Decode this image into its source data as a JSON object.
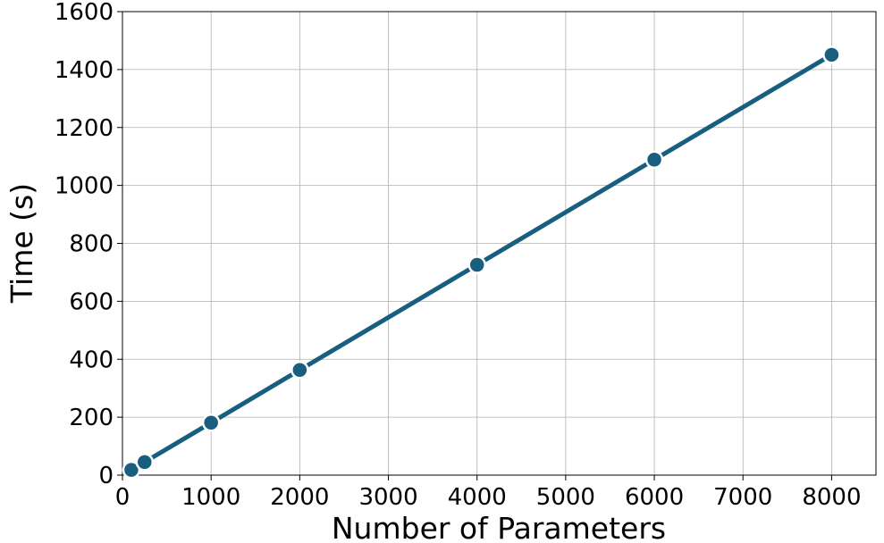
{
  "chart_data": {
    "type": "line",
    "x_label": "Number of Parameters",
    "y_label": "Time (s)",
    "x": [
      100,
      250,
      1000,
      2000,
      4000,
      6000,
      8000
    ],
    "series": [
      {
        "color": "#175e7f",
        "values": [
          18,
          45,
          181,
          363,
          726,
          1089,
          1451
        ]
      }
    ],
    "xlim": [
      0,
      8500
    ],
    "xticks": [
      0,
      1000,
      2000,
      3000,
      4000,
      5000,
      6000,
      7000,
      8000
    ],
    "ylim": [
      0,
      1600
    ],
    "yticks": [
      0,
      200,
      400,
      600,
      800,
      1000,
      1200,
      1400,
      1600
    ],
    "grid": true
  }
}
